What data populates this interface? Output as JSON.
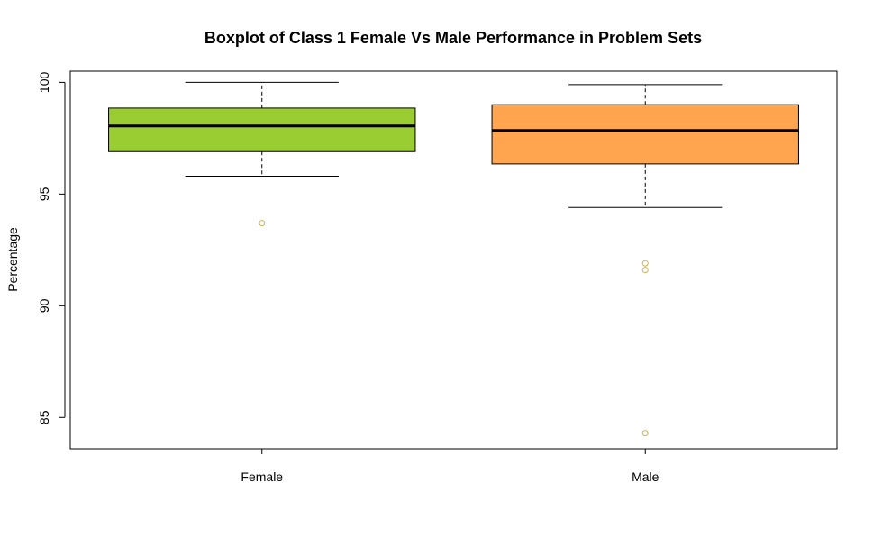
{
  "chart_data": {
    "type": "boxplot",
    "title": "Boxplot of Class 1 Female Vs Male Performance in Problem Sets",
    "xlabel": "",
    "ylabel": "Percentage",
    "ylim": [
      83.6,
      100.5
    ],
    "yticks": [
      85,
      90,
      95,
      100
    ],
    "categories": [
      "Female",
      "Male"
    ],
    "boxes": [
      {
        "category": "Female",
        "whisker_low": 95.8,
        "q1": 96.9,
        "median": 98.05,
        "q3": 98.85,
        "whisker_high": 100,
        "outliers": [
          93.7
        ],
        "fill": "#9acd32"
      },
      {
        "category": "Male",
        "whisker_low": 94.4,
        "q1": 96.35,
        "median": 97.85,
        "q3": 99.0,
        "whisker_high": 99.9,
        "outliers": [
          91.9,
          91.6,
          84.3
        ],
        "fill": "#ffa54f"
      }
    ],
    "outlier_color": "#c8b45a",
    "grid": false,
    "legend": "none"
  }
}
